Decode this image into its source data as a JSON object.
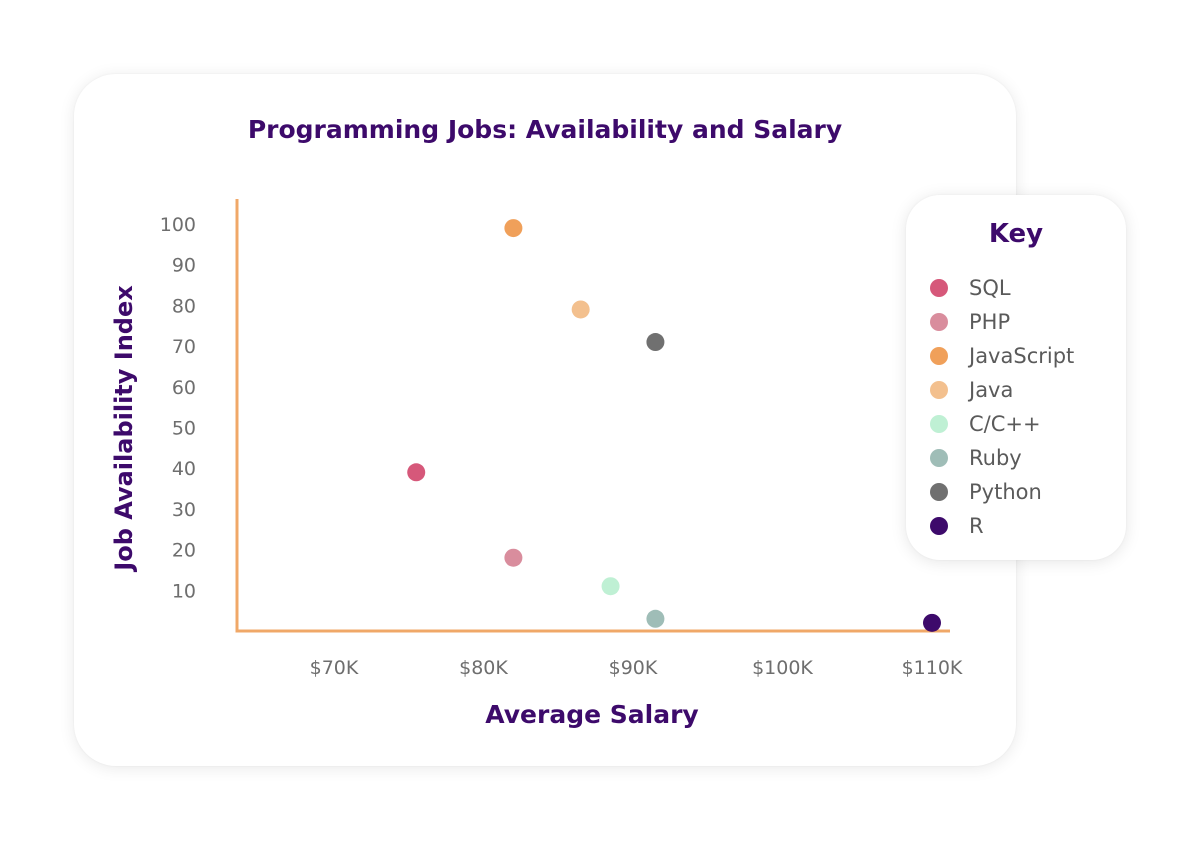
{
  "chart_data": {
    "type": "scatter",
    "title": "Programming Jobs: Availability and Salary",
    "xlabel": "Average Salary",
    "ylabel": "Job Availability Index",
    "xlim": [
      63000,
      112000
    ],
    "ylim": [
      0,
      105
    ],
    "x_ticks": [
      {
        "value": 70000,
        "label": "$70K"
      },
      {
        "value": 80000,
        "label": "$80K"
      },
      {
        "value": 90000,
        "label": "$90K"
      },
      {
        "value": 100000,
        "label": "$100K"
      },
      {
        "value": 110000,
        "label": "$110K"
      }
    ],
    "y_ticks": [
      {
        "value": 10,
        "label": "10"
      },
      {
        "value": 20,
        "label": "20"
      },
      {
        "value": 30,
        "label": "30"
      },
      {
        "value": 40,
        "label": "40"
      },
      {
        "value": 50,
        "label": "50"
      },
      {
        "value": 60,
        "label": "60"
      },
      {
        "value": 70,
        "label": "70"
      },
      {
        "value": 80,
        "label": "80"
      },
      {
        "value": 90,
        "label": "90"
      },
      {
        "value": 100,
        "label": "100"
      }
    ],
    "grid": false,
    "legend": {
      "title": "Key",
      "position": "right"
    },
    "series": [
      {
        "name": "SQL",
        "color": "#d6587a",
        "x": 75500,
        "y": 39
      },
      {
        "name": "PHP",
        "color": "#d98d9d",
        "x": 82000,
        "y": 18
      },
      {
        "name": "JavaScript",
        "color": "#f0a05a",
        "x": 82000,
        "y": 99
      },
      {
        "name": "Java",
        "color": "#f3c08e",
        "x": 86500,
        "y": 79
      },
      {
        "name": "C/C++",
        "color": "#bff0d4",
        "x": 88500,
        "y": 11
      },
      {
        "name": "Ruby",
        "color": "#9fbdb7",
        "x": 91500,
        "y": 3
      },
      {
        "name": "Python",
        "color": "#707070",
        "x": 91500,
        "y": 71
      },
      {
        "name": "R",
        "color": "#3d0a6b",
        "x": 110000,
        "y": 2
      }
    ]
  },
  "colors": {
    "title": "#3d0a6b",
    "axis": "#f0a868",
    "tick_text": "#6e6e6e"
  }
}
